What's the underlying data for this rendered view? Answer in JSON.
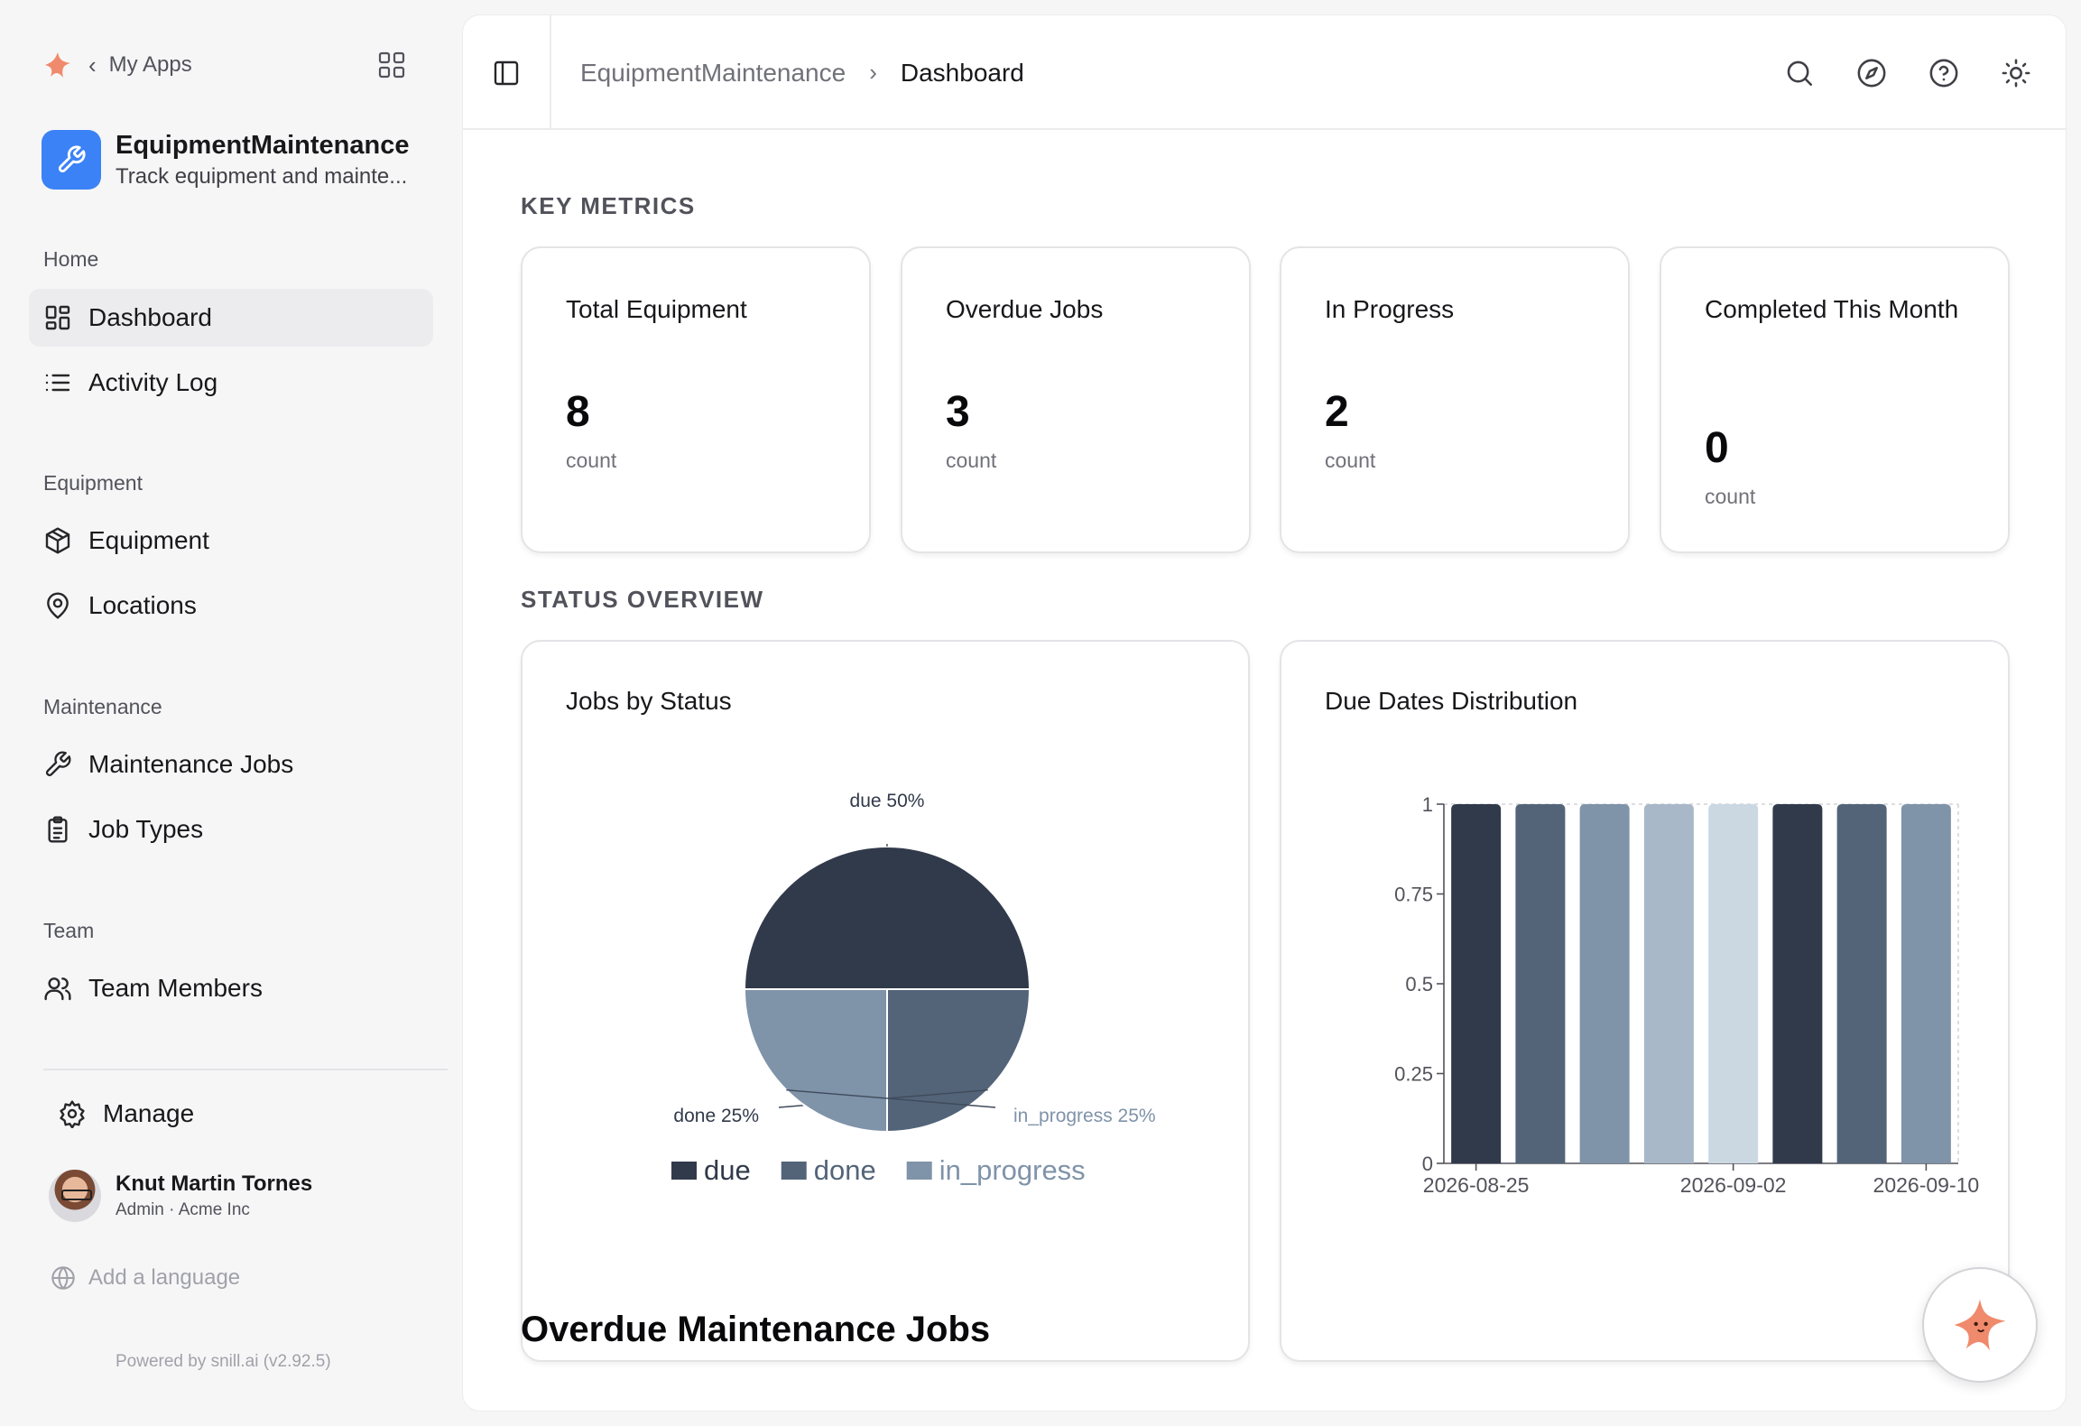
{
  "nav": {
    "back_label": "My Apps",
    "app_name": "EquipmentMaintenance",
    "app_description": "Track equipment and mainte..."
  },
  "sidebar": {
    "sections": [
      {
        "label": "Home",
        "items": [
          {
            "label": "Dashboard",
            "icon": "dashboard-icon",
            "active": true
          },
          {
            "label": "Activity Log",
            "icon": "list-icon"
          }
        ]
      },
      {
        "label": "Equipment",
        "items": [
          {
            "label": "Equipment",
            "icon": "package-icon"
          },
          {
            "label": "Locations",
            "icon": "map-pin-icon"
          }
        ]
      },
      {
        "label": "Maintenance",
        "items": [
          {
            "label": "Maintenance Jobs",
            "icon": "wrench-icon"
          },
          {
            "label": "Job Types",
            "icon": "clipboard-icon"
          }
        ]
      },
      {
        "label": "Team",
        "items": [
          {
            "label": "Team Members",
            "icon": "users-icon"
          }
        ]
      }
    ],
    "manage_label": "Manage",
    "user": {
      "name": "Knut Martin Tornes",
      "role": "Admin · Acme Inc"
    },
    "add_language": "Add a language",
    "powered_by": "Powered by snill.ai (v2.92.5)"
  },
  "header": {
    "breadcrumb": [
      "EquipmentMaintenance",
      "Dashboard"
    ],
    "icons": [
      "search-icon",
      "compass-icon",
      "help-icon",
      "sun-icon"
    ]
  },
  "key_metrics": {
    "title": "KEY METRICS",
    "cards": [
      {
        "title": "Total Equipment",
        "value": "8",
        "unit": "count"
      },
      {
        "title": "Overdue Jobs",
        "value": "3",
        "unit": "count"
      },
      {
        "title": "In Progress",
        "value": "2",
        "unit": "count"
      },
      {
        "title": "Completed This Month",
        "value": "0",
        "unit": "count"
      }
    ]
  },
  "status_overview": {
    "title": "STATUS OVERVIEW",
    "pie_title": "Jobs by Status",
    "bar_title": "Due Dates Distribution"
  },
  "overdue_title": "Overdue Maintenance Jobs",
  "colors": {
    "accent": "#3b82f6",
    "dark": "#313a4a",
    "mid": "#536479",
    "light": "#7f93a9",
    "lighter": "#a8b8c8",
    "lightest": "#cbd8e2"
  },
  "chart_data": [
    {
      "type": "pie",
      "title": "Jobs by Status",
      "categories": [
        "due",
        "done",
        "in_progress"
      ],
      "values": [
        50,
        25,
        25
      ],
      "labels": [
        "due 50%",
        "done 25%",
        "in_progress 25%"
      ],
      "colors": [
        "#313a4a",
        "#536479",
        "#7f93a9"
      ],
      "legend": "bottom"
    },
    {
      "type": "bar",
      "title": "Due Dates Distribution",
      "categories": [
        "2026-08-25",
        "",
        "",
        "",
        "2026-09-02",
        "",
        "",
        "2026-09-10"
      ],
      "values": [
        1,
        1,
        1,
        1,
        1,
        1,
        1,
        1
      ],
      "colors": [
        "#313a4a",
        "#536479",
        "#7f93a9",
        "#a8b8c8",
        "#cbd8e2",
        "#313a4a",
        "#536479",
        "#7f93a9"
      ],
      "yticks": [
        "0",
        "0.25",
        "0.5",
        "0.75",
        "1"
      ],
      "ylim": [
        0,
        1
      ],
      "xtick_labels": [
        "2026-08-25",
        "2026-09-02",
        "2026-09-10"
      ],
      "grid": false
    }
  ]
}
